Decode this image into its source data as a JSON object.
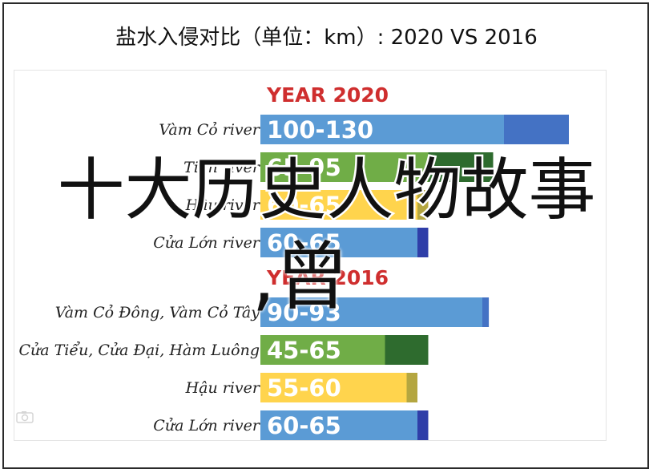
{
  "title": "盐水入侵对比（单位：km）: 2020 VS 2016",
  "overlay": {
    "headline": "十大历史人物故事",
    "sub": ",曾"
  },
  "chart_data": {
    "type": "bar",
    "orientation": "horizontal",
    "title": "盐水入侵对比（单位：km）: 2020 VS 2016",
    "value_unit": "km",
    "xlim": [
      0,
      145
    ],
    "grid": false,
    "legend": "none",
    "groups": [
      {
        "heading": "YEAR 2020",
        "rows": [
          {
            "category": "Vàm Cỏ river",
            "label": "100-130",
            "min": 100,
            "max": 130,
            "color_main": "#5b9bd5",
            "color_ext": "#4472c4"
          },
          {
            "category": "Tiền river",
            "label": "65-95",
            "min": 65,
            "max": 95,
            "color_main": "#70ad47",
            "color_ext": "#2e6b2e"
          },
          {
            "category": "Hậu river",
            "label": "60-65",
            "min": 60,
            "max": 65,
            "color_main": "#ffd44d",
            "color_ext": "#b4a640"
          },
          {
            "category": "Cửa Lớn river",
            "label": "60-65",
            "min": 60,
            "max": 65,
            "color_main": "#5b9bd5",
            "color_ext": "#2f3ea8"
          }
        ]
      },
      {
        "heading": "YEAR 2016",
        "rows": [
          {
            "category": "Vàm Cỏ Đông, Vàm Cỏ Tây",
            "label": "90-93",
            "min": 90,
            "max": 93,
            "color_main": "#5b9bd5",
            "color_ext": "#4472c4"
          },
          {
            "category": "Cửa Tiểu, Cửa Đại, Hàm Luông",
            "label": "45-65",
            "min": 45,
            "max": 65,
            "color_main": "#70ad47",
            "color_ext": "#2e6b2e"
          },
          {
            "category": "Hậu river",
            "label": "55-60",
            "min": 55,
            "max": 60,
            "color_main": "#ffd44d",
            "color_ext": "#b4a640"
          },
          {
            "category": "Cửa Lớn river",
            "label": "60-65",
            "min": 60,
            "max": 65,
            "color_main": "#5b9bd5",
            "color_ext": "#2f3ea8"
          }
        ]
      }
    ]
  },
  "icons": {
    "watermark": "camera-watermark-icon"
  }
}
